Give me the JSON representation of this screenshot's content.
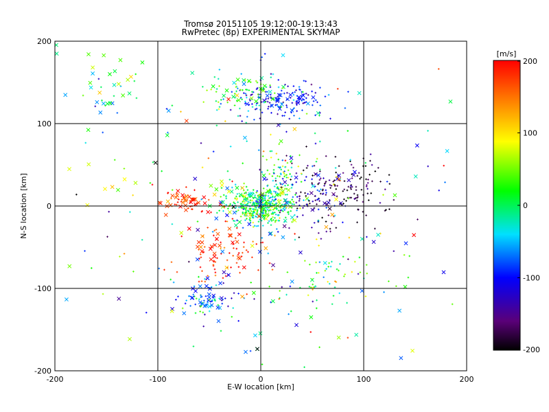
{
  "chart_data": {
    "type": "scatter",
    "title": "Tromsø 20151105 19:12:00-19:13:43",
    "subtitle": "RwPretec (8p) EXPERIMENTAL SKYMAP",
    "xlabel": "E-W location [km]",
    "ylabel": "N-S location [km]",
    "xlim": [
      -200,
      200
    ],
    "ylim": [
      -200,
      200
    ],
    "xticks": [
      -200,
      -100,
      0,
      100,
      200
    ],
    "yticks": [
      -200,
      -100,
      0,
      100,
      200
    ],
    "grid": true,
    "colorbar": {
      "label": "[m/s]",
      "range": [
        -200,
        200
      ],
      "ticks": [
        200,
        100,
        0,
        -100,
        -200
      ],
      "colormap": "rainbow (black-purple-blue-cyan-green-yellow-red)"
    },
    "markers": {
      "plus": "dense core detections",
      "cross": "sparse detections"
    },
    "clusters": [
      {
        "shape": "plus",
        "cx": 0,
        "cy": 0,
        "sx": 16,
        "sy": 11,
        "n": 420,
        "v": 5,
        "vs": 45
      },
      {
        "shape": "cross",
        "cx": 0,
        "cy": 2,
        "sx": 22,
        "sy": 14,
        "n": 60,
        "v": 10,
        "vs": 70
      },
      {
        "shape": "plus",
        "cx": 18,
        "cy": 40,
        "sx": 10,
        "sy": 14,
        "n": 60,
        "v": 0,
        "vs": 60
      },
      {
        "shape": "plus",
        "cx": 20,
        "cy": 128,
        "sx": 22,
        "sy": 10,
        "n": 140,
        "v": -100,
        "vs": 25
      },
      {
        "shape": "cross",
        "cx": 20,
        "cy": 130,
        "sx": 15,
        "sy": 6,
        "n": 20,
        "v": -100,
        "vs": 20
      },
      {
        "shape": "plus",
        "cx": -20,
        "cy": 135,
        "sx": 25,
        "sy": 12,
        "n": 60,
        "v": 10,
        "vs": 40
      },
      {
        "shape": "cross",
        "cx": -10,
        "cy": 140,
        "sx": 18,
        "sy": 10,
        "n": 20,
        "v": 10,
        "vs": 30
      },
      {
        "shape": "plus",
        "cx": 75,
        "cy": 20,
        "sx": 28,
        "sy": 20,
        "n": 150,
        "v": -180,
        "vs": 25
      },
      {
        "shape": "plus",
        "cx": 50,
        "cy": 10,
        "sx": 20,
        "sy": 18,
        "n": 50,
        "v": -120,
        "vs": 30
      },
      {
        "shape": "cross",
        "cx": 75,
        "cy": 25,
        "sx": 25,
        "sy": 15,
        "n": 15,
        "v": -150,
        "vs": 40
      },
      {
        "shape": "plus",
        "cx": -40,
        "cy": -60,
        "sx": 20,
        "sy": 18,
        "n": 70,
        "v": 180,
        "vs": 25
      },
      {
        "shape": "cross",
        "cx": -35,
        "cy": -45,
        "sx": 18,
        "sy": 14,
        "n": 25,
        "v": 180,
        "vs": 25
      },
      {
        "shape": "plus",
        "cx": -50,
        "cy": -115,
        "sx": 14,
        "sy": 10,
        "n": 60,
        "v": -60,
        "vs": 50
      },
      {
        "shape": "cross",
        "cx": -50,
        "cy": -110,
        "sx": 14,
        "sy": 12,
        "n": 25,
        "v": -90,
        "vs": 20
      },
      {
        "shape": "plus",
        "cx": -70,
        "cy": 5,
        "sx": 12,
        "sy": 7,
        "n": 30,
        "v": 180,
        "vs": 20
      },
      {
        "shape": "cross",
        "cx": -75,
        "cy": 5,
        "sx": 14,
        "sy": 7,
        "n": 30,
        "v": 185,
        "vs": 20
      },
      {
        "shape": "plus",
        "cx": 70,
        "cy": -90,
        "sx": 30,
        "sy": 18,
        "n": 50,
        "v": 20,
        "vs": 50
      },
      {
        "shape": "plus",
        "cx": -150,
        "cy": 150,
        "sx": 25,
        "sy": 25,
        "n": 12,
        "v": 10,
        "vs": 40
      },
      {
        "shape": "cross",
        "cx": -160,
        "cy": 145,
        "sx": 25,
        "sy": 30,
        "n": 25,
        "v": 10,
        "vs": 40
      },
      {
        "shape": "cross",
        "cx": -140,
        "cy": 30,
        "sx": 20,
        "sy": 12,
        "n": 8,
        "v": 70,
        "vs": 20
      },
      {
        "shape": "plus",
        "cx": 0,
        "cy": 0,
        "sx": 100,
        "sy": 100,
        "n": 160,
        "v": 0,
        "vs": 90
      },
      {
        "shape": "cross",
        "cx": 0,
        "cy": 0,
        "sx": 110,
        "sy": 110,
        "n": 110,
        "v": 0,
        "vs": 100
      }
    ]
  }
}
